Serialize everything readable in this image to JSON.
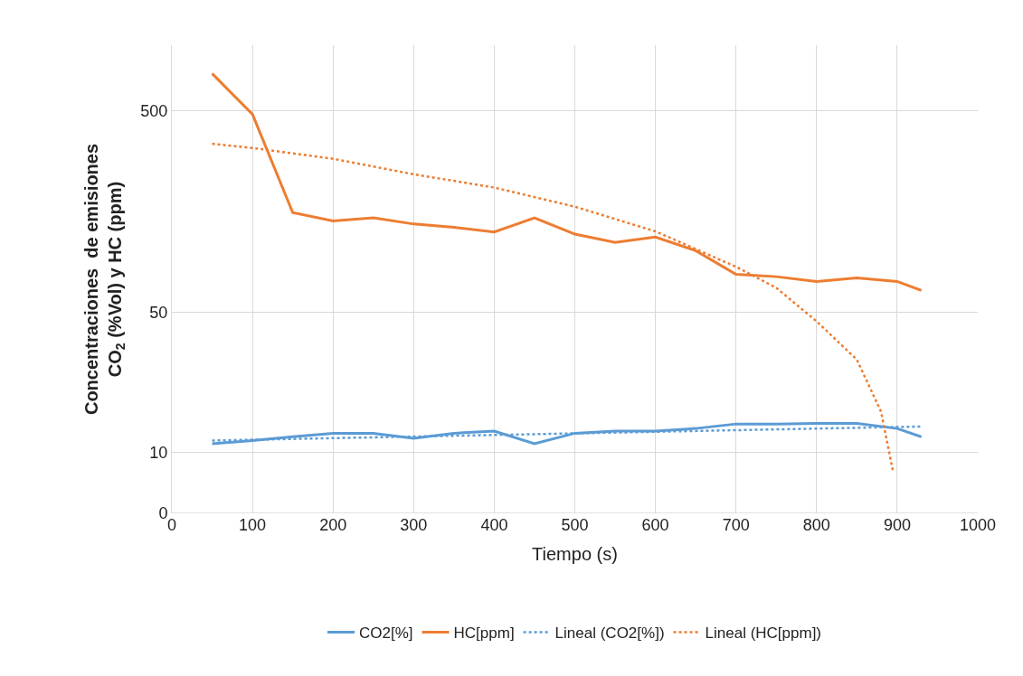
{
  "chart_data": {
    "type": "line",
    "xlabel": "Tiempo (s)",
    "ylabel": "Concentraciones  de emisiones CO$_{2}$ (%Vol) y HC (ppm)",
    "log": "y",
    "xlim": [
      0,
      1000
    ],
    "xticks": [
      0,
      100,
      200,
      300,
      400,
      500,
      600,
      700,
      800,
      900,
      1000
    ],
    "ylim": [
      0,
      1060
    ],
    "yticks": [
      0,
      10,
      50,
      500
    ],
    "grid": true,
    "legend": "bottom",
    "marker": "none",
    "series": [
      {
        "name": "CO2[%]",
        "color": "#5b9bd5",
        "line_style": "solid",
        "x": [
          50,
          100,
          150,
          200,
          250,
          300,
          350,
          400,
          450,
          500,
          550,
          600,
          650,
          700,
          750,
          800,
          850,
          900,
          930
        ],
        "values": [
          11.1,
          11.5,
          12.0,
          12.5,
          12.5,
          11.8,
          12.5,
          12.8,
          11.1,
          12.5,
          12.8,
          12.8,
          13.2,
          13.9,
          13.9,
          14.0,
          14.0,
          13.2,
          12.0
        ]
      },
      {
        "name": "HC[ppm]",
        "color": "#ed7d31",
        "line_style": "solid",
        "x": [
          50,
          100,
          150,
          200,
          250,
          300,
          350,
          400,
          450,
          500,
          550,
          600,
          650,
          700,
          750,
          800,
          850,
          900,
          930
        ],
        "values": [
          766,
          481,
          156,
          142,
          147,
          137,
          132,
          125,
          147,
          122,
          111,
          118,
          101,
          77,
          75,
          71,
          74,
          71,
          64
        ]
      },
      {
        "name": "Lineal (CO2[%])",
        "color": "#5b9bd5",
        "line_style": "dotted",
        "x": [
          50,
          930
        ],
        "values": [
          11.5,
          13.5
        ]
      },
      {
        "name": "Lineal (HC[ppm])",
        "color": "#ed7d31",
        "line_style": "dotted",
        "x": [
          50,
          100,
          200,
          300,
          400,
          500,
          600,
          700,
          750,
          800,
          850,
          880,
          895
        ],
        "values": [
          343,
          327,
          289,
          242,
          208,
          167,
          126,
          84,
          66,
          45,
          29,
          16,
          8
        ]
      }
    ]
  }
}
